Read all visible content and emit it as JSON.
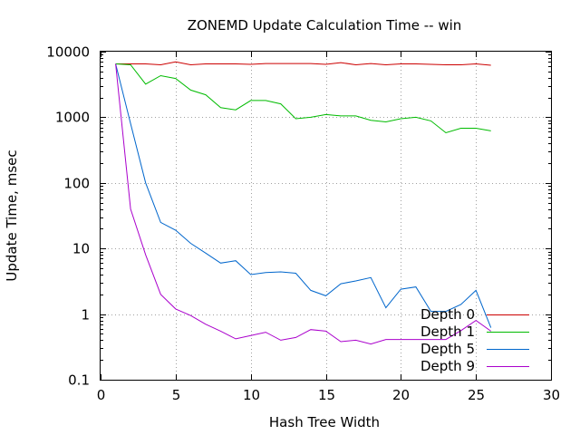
{
  "chart_data": {
    "type": "line",
    "title": "ZONEMD Update Calculation Time -- win",
    "xlabel": "Hash Tree Width",
    "ylabel": "Update Time, msec",
    "xlim": [
      0,
      30
    ],
    "ylim": [
      0.1,
      10000
    ],
    "yscale": "log",
    "grid": true,
    "legend_position": "bottom-right",
    "xticks": [
      0,
      5,
      10,
      15,
      20,
      25,
      30
    ],
    "xtick_labels": [
      "0",
      "5",
      "10",
      "15",
      "20",
      "25",
      "30"
    ],
    "yticks": [
      0.1,
      1,
      10,
      100,
      1000,
      10000
    ],
    "ytick_labels": [
      "0.1",
      "1",
      "10",
      "100",
      "1000",
      "10000"
    ],
    "x": [
      1,
      2,
      3,
      4,
      5,
      6,
      7,
      8,
      9,
      10,
      11,
      12,
      13,
      14,
      15,
      16,
      17,
      18,
      19,
      20,
      21,
      22,
      23,
      24,
      25,
      26
    ],
    "series": [
      {
        "name": "Depth 0",
        "color": "#cc0000",
        "values": [
          6500,
          6500,
          6500,
          6300,
          7000,
          6300,
          6500,
          6500,
          6500,
          6400,
          6600,
          6600,
          6600,
          6600,
          6400,
          6800,
          6300,
          6600,
          6300,
          6500,
          6500,
          6400,
          6300,
          6300,
          6500,
          6200
        ]
      },
      {
        "name": "Depth 1",
        "color": "#00bb00",
        "values": [
          6500,
          6300,
          3200,
          4300,
          3900,
          2600,
          2200,
          1400,
          1300,
          1800,
          1800,
          1600,
          950,
          1000,
          1100,
          1050,
          1050,
          900,
          850,
          950,
          1000,
          880,
          580,
          680,
          680,
          620
        ]
      },
      {
        "name": "Depth 5",
        "color": "#0066cc",
        "values": [
          6500,
          800,
          100,
          25,
          19,
          12,
          8.5,
          6,
          6.5,
          4,
          4.3,
          4.4,
          4.2,
          2.3,
          1.9,
          2.9,
          3.2,
          3.6,
          1.25,
          2.4,
          2.6,
          1.1,
          1.1,
          1.4,
          2.3,
          0.62
        ]
      },
      {
        "name": "Depth 9",
        "color": "#aa00cc",
        "values": [
          6500,
          40,
          8,
          2,
          1.2,
          0.95,
          0.7,
          0.55,
          0.42,
          0.47,
          0.53,
          0.4,
          0.44,
          0.58,
          0.55,
          0.38,
          0.4,
          0.35,
          0.41,
          0.41,
          0.41,
          0.41,
          0.41,
          0.56,
          0.8,
          0.55
        ]
      }
    ]
  }
}
